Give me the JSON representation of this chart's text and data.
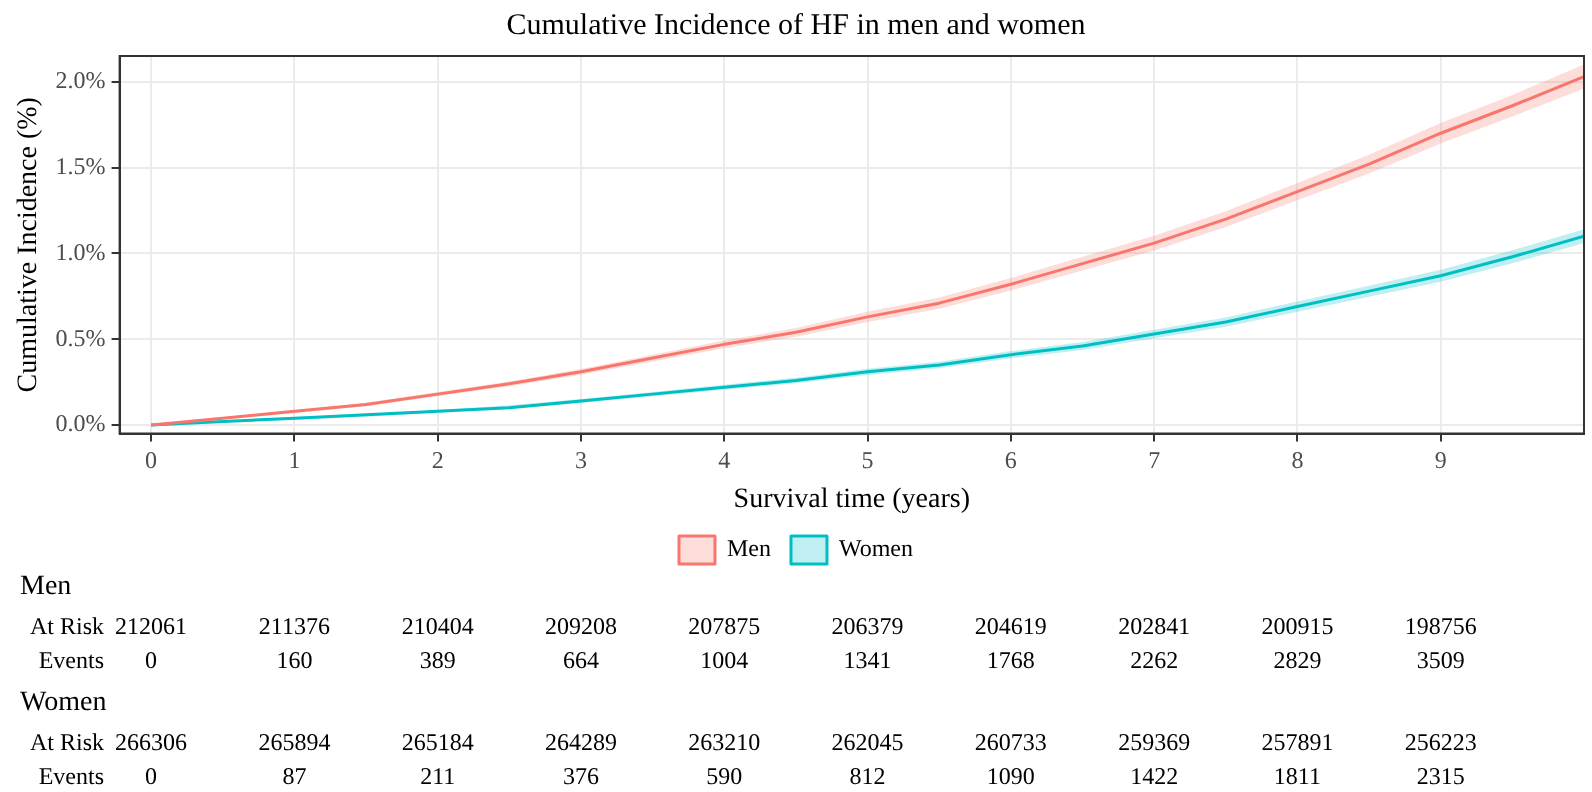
{
  "chart_data": {
    "type": "line",
    "title": "Cumulative Incidence of HF in men and women",
    "xlabel": "Survival time (years)",
    "ylabel": "Cumulative Incidence (%)",
    "xlim": [
      -0.22,
      10
    ],
    "xticks": [
      0,
      1,
      2,
      3,
      4,
      5,
      6,
      7,
      8,
      9
    ],
    "ylim": [
      -0.05,
      2.15
    ],
    "yticks": [
      {
        "value": 0,
        "label": "0.0%"
      },
      {
        "value": 0.5,
        "label": "0.5%"
      },
      {
        "value": 1,
        "label": "1.0%"
      },
      {
        "value": 1.5,
        "label": "1.5%"
      },
      {
        "value": 2,
        "label": "2.0%"
      }
    ],
    "grid": true,
    "legend": "bottom",
    "marker": "none",
    "line_style": "solid",
    "x": [
      0,
      0.5,
      1,
      1.5,
      2,
      2.5,
      3,
      3.5,
      4,
      4.5,
      5,
      5.5,
      6,
      6.5,
      7,
      7.5,
      8,
      8.5,
      9,
      9.5,
      10
    ],
    "series": [
      {
        "name": "Men",
        "color": "#f8766d",
        "values": [
          0,
          0.04,
          0.08,
          0.12,
          0.18,
          0.24,
          0.31,
          0.39,
          0.47,
          0.54,
          0.63,
          0.71,
          0.82,
          0.94,
          1.06,
          1.2,
          1.36,
          1.52,
          1.7,
          1.86,
          2.03
        ],
        "lower": [
          0,
          0.035,
          0.068,
          0.11,
          0.168,
          0.226,
          0.293,
          0.37,
          0.448,
          0.515,
          0.6,
          0.677,
          0.784,
          0.9,
          1.017,
          1.154,
          1.31,
          1.465,
          1.64,
          1.797,
          1.96
        ],
        "upper": [
          0,
          0.045,
          0.082,
          0.13,
          0.192,
          0.254,
          0.327,
          0.41,
          0.492,
          0.565,
          0.66,
          0.743,
          0.856,
          0.98,
          1.103,
          1.246,
          1.41,
          1.575,
          1.76,
          1.923,
          2.1
        ]
      },
      {
        "name": "Women",
        "color": "#00bfc4",
        "values": [
          0,
          0.02,
          0.04,
          0.06,
          0.08,
          0.1,
          0.14,
          0.18,
          0.22,
          0.26,
          0.31,
          0.35,
          0.41,
          0.46,
          0.53,
          0.6,
          0.69,
          0.78,
          0.87,
          0.98,
          1.1
        ],
        "lower": [
          0,
          0.012,
          0.03,
          0.048,
          0.072,
          0.095,
          0.128,
          0.167,
          0.205,
          0.244,
          0.292,
          0.331,
          0.389,
          0.437,
          0.505,
          0.573,
          0.66,
          0.748,
          0.835,
          0.942,
          1.06
        ],
        "upper": [
          0,
          0.018,
          0.04,
          0.062,
          0.088,
          0.115,
          0.152,
          0.193,
          0.235,
          0.276,
          0.328,
          0.369,
          0.431,
          0.483,
          0.555,
          0.627,
          0.72,
          0.812,
          0.905,
          1.018,
          1.14
        ]
      }
    ],
    "annotations": [
      "Men",
      "At Risk",
      "212061",
      "211376",
      "210404",
      "209208",
      "207875",
      "206379",
      "204619",
      "202841",
      "200915",
      "198756",
      "Events",
      "0",
      "160",
      "389",
      "664",
      "1004",
      "1341",
      "1768",
      "2262",
      "2829",
      "3509",
      "Women",
      "At Risk",
      "266306",
      "265894",
      "265184",
      "264289",
      "263210",
      "262045",
      "260733",
      "259369",
      "257891",
      "256223",
      "Events",
      "0",
      "87",
      "211",
      "376",
      "590",
      "812",
      "1090",
      "1422",
      "1811",
      "2315"
    ]
  }
}
